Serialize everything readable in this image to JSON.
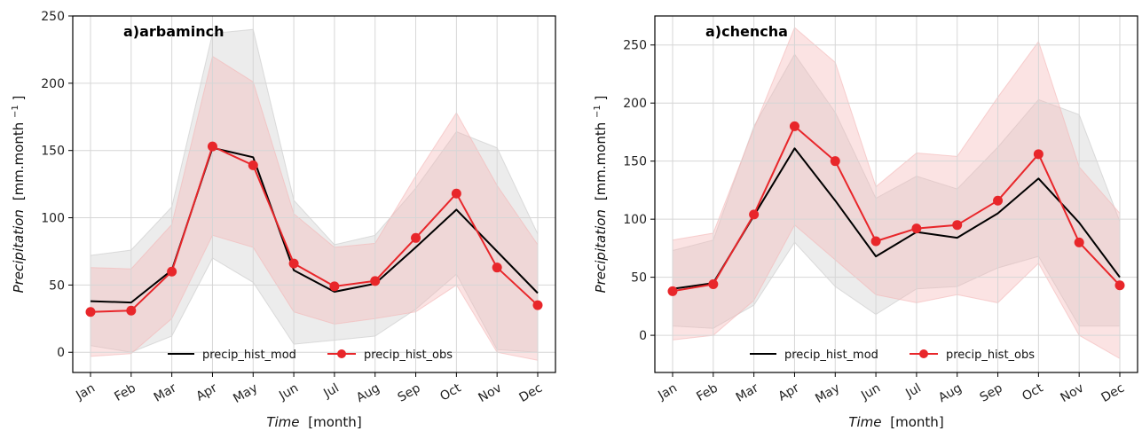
{
  "chart_data": [
    {
      "type": "line",
      "title": "a)arbaminch",
      "xlabel_main": "Time",
      "xlabel_unit": "[month]",
      "ylabel_main": "Precipitation",
      "ylabel_unit": "[mm.month",
      "ylabel_exp": "−1",
      "ylabel_close": "]",
      "ylim": [
        -15,
        250
      ],
      "yticks": [
        0,
        50,
        100,
        150,
        200,
        250
      ],
      "categories": [
        "Jan",
        "Feb",
        "Mar",
        "Apr",
        "May",
        "Jun",
        "Jul",
        "Aug",
        "Sep",
        "Oct",
        "Nov",
        "Dec"
      ],
      "series": [
        {
          "name": "precip_hist_mod",
          "color": "#000000",
          "marker": "none",
          "values": [
            38,
            37,
            61,
            152,
            145,
            61,
            45,
            51,
            78,
            106,
            75,
            44
          ],
          "band_low": [
            5,
            0,
            12,
            70,
            52,
            6,
            9,
            12,
            32,
            58,
            2,
            0
          ],
          "band_high": [
            72,
            76,
            108,
            237,
            240,
            113,
            80,
            87,
            122,
            164,
            152,
            88
          ],
          "band_color": "#c8c8c8"
        },
        {
          "name": "precip_hist_obs",
          "color": "#e8262a",
          "marker": "circle",
          "values": [
            30,
            31,
            60,
            153,
            139,
            66,
            49,
            53,
            85,
            118,
            63,
            35
          ],
          "band_low": [
            -3,
            -1,
            25,
            87,
            78,
            30,
            21,
            25,
            30,
            50,
            0,
            -6
          ],
          "band_high": [
            63,
            62,
            95,
            220,
            201,
            103,
            78,
            81,
            131,
            178,
            124,
            80
          ],
          "band_color": "#f4b6b6"
        }
      ],
      "legend": "lower-center"
    },
    {
      "type": "line",
      "title": "a)chencha",
      "xlabel_main": "Time",
      "xlabel_unit": "[month]",
      "ylabel_main": "Precipitation",
      "ylabel_unit": "[mm.month",
      "ylabel_exp": "−1",
      "ylabel_close": "]",
      "ylim": [
        -32,
        275
      ],
      "yticks": [
        0,
        50,
        100,
        150,
        200,
        250
      ],
      "categories": [
        "Jan",
        "Feb",
        "Mar",
        "Apr",
        "May",
        "Jun",
        "Jul",
        "Aug",
        "Sep",
        "Oct",
        "Nov",
        "Dec"
      ],
      "series": [
        {
          "name": "precip_hist_mod",
          "color": "#000000",
          "marker": "none",
          "values": [
            40,
            45,
            103,
            161,
            116,
            68,
            89,
            84,
            105,
            135,
            97,
            50
          ],
          "band_low": [
            8,
            6,
            26,
            80,
            42,
            18,
            40,
            42,
            58,
            68,
            8,
            8
          ],
          "band_high": [
            73,
            82,
            180,
            242,
            192,
            118,
            137,
            126,
            162,
            203,
            190,
            98
          ],
          "band_color": "#c8c8c8"
        },
        {
          "name": "precip_hist_obs",
          "color": "#e8262a",
          "marker": "circle",
          "values": [
            38,
            44,
            104,
            180,
            150,
            81,
            92,
            95,
            116,
            156,
            80,
            43
          ],
          "band_low": [
            -4,
            0,
            30,
            95,
            65,
            35,
            28,
            35,
            28,
            62,
            0,
            -20
          ],
          "band_high": [
            82,
            88,
            178,
            265,
            235,
            128,
            157,
            154,
            205,
            253,
            145,
            105
          ],
          "band_color": "#f4b6b6"
        }
      ],
      "legend": "lower-center"
    }
  ]
}
